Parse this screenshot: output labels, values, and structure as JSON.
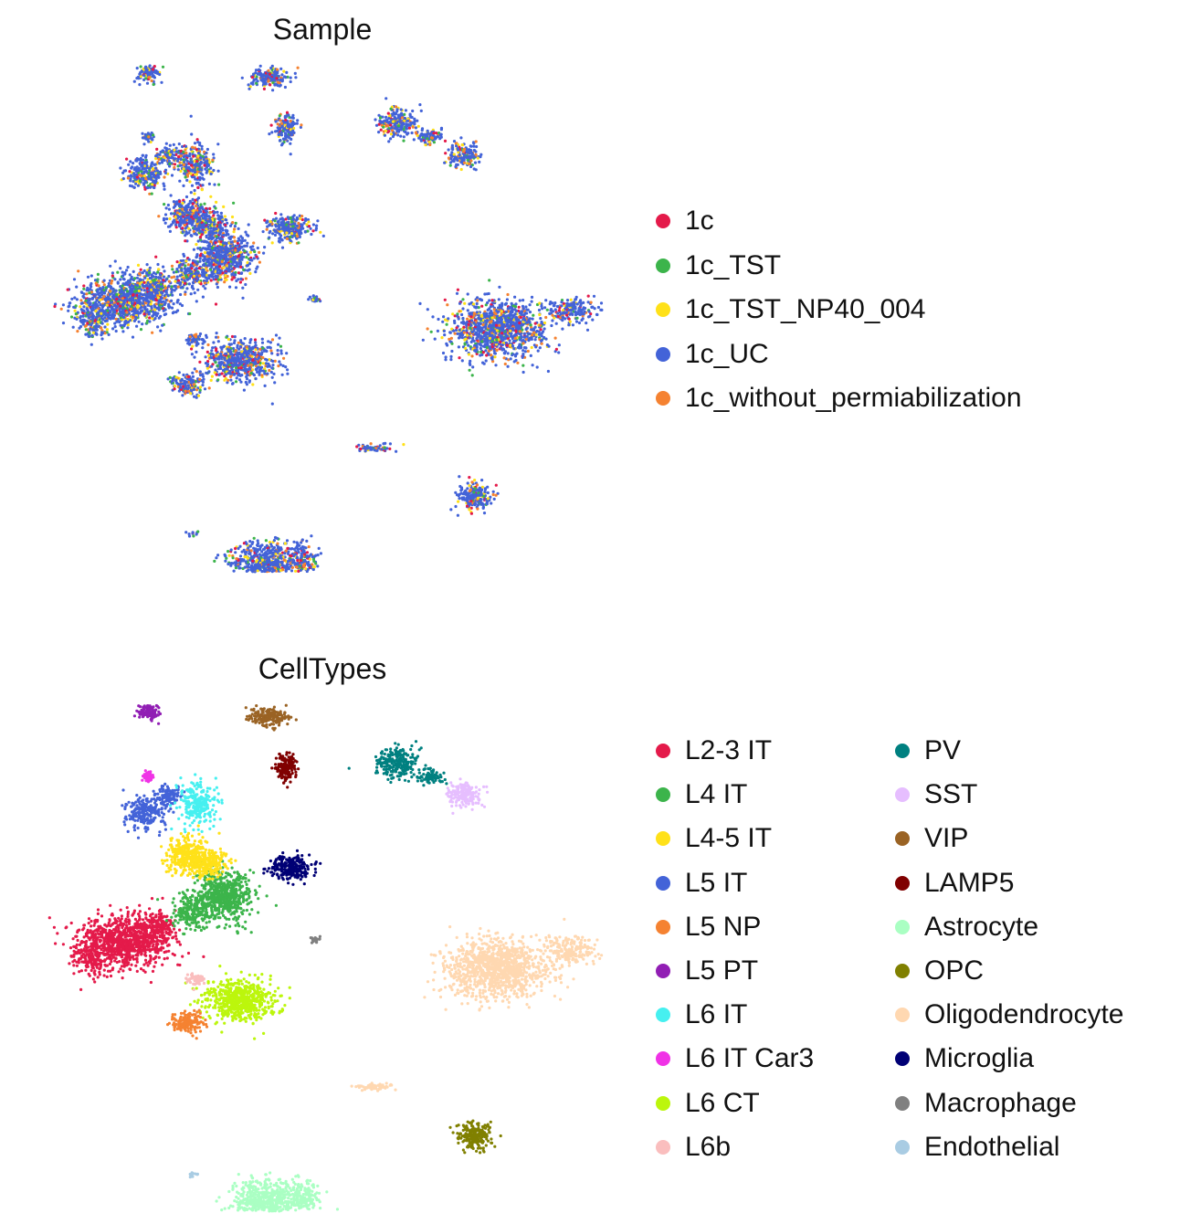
{
  "chart_data": [
    {
      "type": "scatter",
      "title": "Sample",
      "legend_placement": "right",
      "legend": [
        {
          "label": "1c",
          "color": "#e41a4a"
        },
        {
          "label": "1c_TST",
          "color": "#3cb44b"
        },
        {
          "label": "1c_TST_NP40_004",
          "color": "#ffe119"
        },
        {
          "label": "1c_UC",
          "color": "#4363d8"
        },
        {
          "label": "1c_without_permiabilization",
          "color": "#f58231"
        }
      ]
    },
    {
      "type": "scatter",
      "title": "CellTypes",
      "legend_placement": "right",
      "legend": [
        {
          "label": "L2-3 IT",
          "color": "#e41a4a"
        },
        {
          "label": "L4 IT",
          "color": "#3cb44b"
        },
        {
          "label": "L4-5 IT",
          "color": "#ffe119"
        },
        {
          "label": "L5 IT",
          "color": "#4363d8"
        },
        {
          "label": "L5 NP",
          "color": "#f58231"
        },
        {
          "label": "L5 PT",
          "color": "#911eb4"
        },
        {
          "label": "L6 IT",
          "color": "#46f0f0"
        },
        {
          "label": "L6 IT Car3",
          "color": "#f032e6"
        },
        {
          "label": "L6 CT",
          "color": "#bcf60c"
        },
        {
          "label": "L6b",
          "color": "#fabebe"
        },
        {
          "label": "PV",
          "color": "#008080"
        },
        {
          "label": "SST",
          "color": "#e6beff"
        },
        {
          "label": "VIP",
          "color": "#9a6324"
        },
        {
          "label": "LAMP5",
          "color": "#800000"
        },
        {
          "label": "Astrocyte",
          "color": "#aaffc3"
        },
        {
          "label": "OPC",
          "color": "#808000"
        },
        {
          "label": "Oligodendrocyte",
          "color": "#ffd8b1"
        },
        {
          "label": "Microglia",
          "color": "#000075"
        },
        {
          "label": "Macrophage",
          "color": "#808080"
        },
        {
          "label": "Endothelial",
          "color": "#a9cce3"
        }
      ]
    }
  ]
}
